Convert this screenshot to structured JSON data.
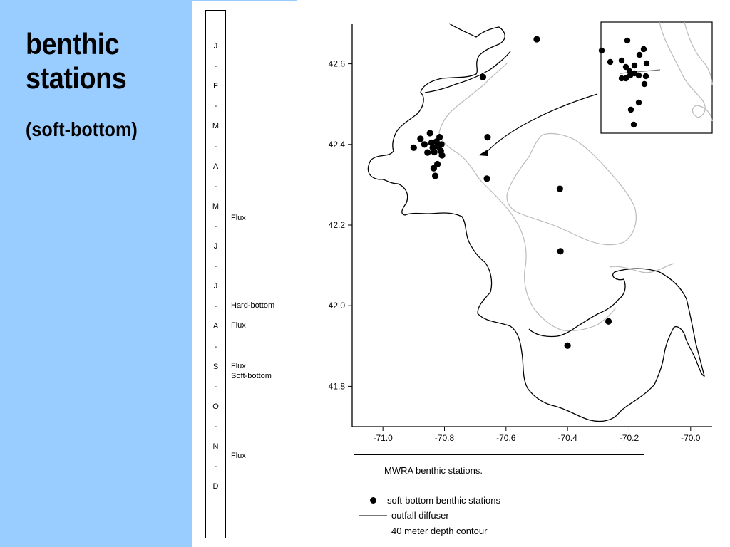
{
  "title": {
    "line1": "benthic",
    "line2": "stations",
    "subtitle": "(soft-bottom)"
  },
  "timeline": {
    "labels": [
      "J",
      "-",
      "F",
      "-",
      "M",
      "-",
      "A",
      "-",
      "M",
      "-",
      "J",
      "-",
      "J",
      "-",
      "A",
      "-",
      "S",
      "-",
      "O",
      "-",
      "N",
      "-",
      "D"
    ],
    "events": [
      {
        "label": "Flux",
        "month": 4.3
      },
      {
        "label": "Hard-bottom",
        "month": 6.5
      },
      {
        "label": "Flux",
        "month": 7.0
      },
      {
        "label": "Flux",
        "month": 8.0
      },
      {
        "label": "Soft-bottom",
        "month": 8.25
      },
      {
        "label": "Flux",
        "month": 10.25
      }
    ]
  },
  "map": {
    "x_axis": {
      "min": -71.1,
      "max": -69.93,
      "ticks": [
        -71.0,
        -70.8,
        -70.6,
        -70.4,
        -70.2,
        -70.0
      ],
      "tick_labels": [
        "-71.0",
        "-70.8",
        "-70.6",
        "-70.4",
        "-70.2",
        "-70.0"
      ]
    },
    "y_axis": {
      "min": 41.7,
      "max": 42.7,
      "ticks": [
        41.8,
        42.0,
        42.2,
        42.4,
        42.6
      ],
      "tick_labels": [
        "41.8",
        "42.0",
        "42.2",
        "42.4",
        "42.6"
      ]
    },
    "stations": [
      {
        "lon": -70.5,
        "lat": 42.661
      },
      {
        "lon": -70.675,
        "lat": 42.567
      },
      {
        "lon": -70.66,
        "lat": 42.418
      },
      {
        "lon": -70.662,
        "lat": 42.315
      },
      {
        "lon": -70.425,
        "lat": 42.29
      },
      {
        "lon": -70.423,
        "lat": 42.135
      },
      {
        "lon": -70.267,
        "lat": 41.961
      },
      {
        "lon": -70.4,
        "lat": 41.901
      },
      {
        "lon": -70.9,
        "lat": 42.392
      },
      {
        "lon": -70.878,
        "lat": 42.414
      },
      {
        "lon": -70.865,
        "lat": 42.4
      },
      {
        "lon": -70.847,
        "lat": 42.428
      },
      {
        "lon": -70.842,
        "lat": 42.404
      },
      {
        "lon": -70.838,
        "lat": 42.392
      },
      {
        "lon": -70.833,
        "lat": 42.381
      },
      {
        "lon": -70.826,
        "lat": 42.407
      },
      {
        "lon": -70.82,
        "lat": 42.395
      },
      {
        "lon": -70.816,
        "lat": 42.418
      },
      {
        "lon": -70.812,
        "lat": 42.384
      },
      {
        "lon": -70.81,
        "lat": 42.4
      },
      {
        "lon": -70.808,
        "lat": 42.373
      },
      {
        "lon": -70.855,
        "lat": 42.38
      },
      {
        "lon": -70.823,
        "lat": 42.351
      },
      {
        "lon": -70.835,
        "lat": 42.341
      },
      {
        "lon": -70.83,
        "lat": 42.322
      }
    ],
    "inset_stations": [
      [
        880,
        57
      ],
      [
        844,
        71
      ],
      [
        856,
        87
      ],
      [
        872,
        85
      ],
      [
        878,
        94
      ],
      [
        883,
        100
      ],
      [
        890,
        92
      ],
      [
        897,
        77
      ],
      [
        903,
        69
      ],
      [
        907,
        89
      ],
      [
        896,
        106
      ],
      [
        890,
        103
      ],
      [
        884,
        106
      ],
      [
        878,
        110
      ],
      [
        872,
        110
      ],
      [
        906,
        107
      ],
      [
        904,
        118
      ],
      [
        896,
        144
      ],
      [
        885,
        154
      ],
      [
        889,
        175
      ]
    ]
  },
  "legend": {
    "title": "MWRA benthic stations.",
    "items": [
      {
        "label": "soft-bottom benthic stations",
        "symbol": "dot"
      },
      {
        "label": "outfall diffuser",
        "symbol": "line",
        "color": "#777777"
      },
      {
        "label": " 40 meter depth contour",
        "symbol": "line",
        "color": "#bbbbbb"
      }
    ]
  },
  "colors": {
    "sidebar": "#99ccff",
    "coastline": "#000000",
    "contour": "#bbbbbb",
    "diffuser": "#777777"
  }
}
